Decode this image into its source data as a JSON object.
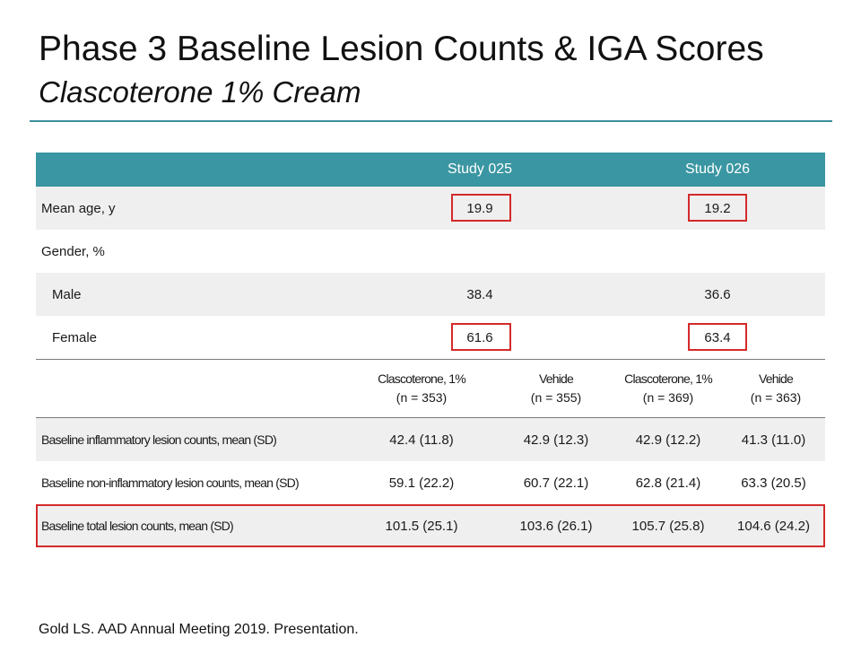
{
  "slide": {
    "title": "Phase 3 Baseline Lesion Counts & IGA Scores",
    "subtitle": "Clascoterone 1% Cream"
  },
  "table": {
    "header": {
      "study_025": "Study 025",
      "study_026": "Study 026"
    },
    "demographics": [
      {
        "label": "Mean age, y",
        "study_025": "19.9",
        "study_026": "19.2",
        "highlighted": true
      },
      {
        "label": "Gender, %",
        "study_025": "",
        "study_026": ""
      },
      {
        "label": "Male",
        "study_025": "38.4",
        "study_026": "36.6"
      },
      {
        "label": "Female",
        "study_025": "61.6",
        "study_026": "63.4",
        "highlighted": true
      }
    ],
    "arms": [
      {
        "name": "Clascoterone, 1%",
        "n": "(n = 353)"
      },
      {
        "name": "Vehide",
        "n": "(n = 355)"
      },
      {
        "name": "Clascoterone, 1%",
        "n": "(n = 369)"
      },
      {
        "name": "Vehide",
        "n": "(n = 363)"
      }
    ],
    "lesions": [
      {
        "label": "Baseline inflammatory lesion counts, mean (SD)",
        "values": [
          "42.4 (11.8)",
          "42.9 (12.3)",
          "42.9 (12.2)",
          "41.3 (11.0)"
        ]
      },
      {
        "label": "Baseline non-inflammatory lesion counts, mean (SD)",
        "values": [
          "59.1 (22.2)",
          "60.7 (22.1)",
          "62.8 (21.4)",
          "63.3 (20.5)"
        ]
      },
      {
        "label": "Baseline total lesion counts, mean (SD)",
        "values": [
          "101.5 (25.1)",
          "103.6 (26.1)",
          "105.7 (25.8)",
          "104.6 (24.2)"
        ],
        "highlighted": true
      }
    ]
  },
  "footer": {
    "citation": "Gold LS. AAD Annual Meeting 2019. Presentation."
  },
  "colors": {
    "header_teal": "#3a96a2",
    "rule_teal": "#3b8f9b",
    "highlight_red": "#d42a2a",
    "stripe_gray": "#efefef"
  }
}
